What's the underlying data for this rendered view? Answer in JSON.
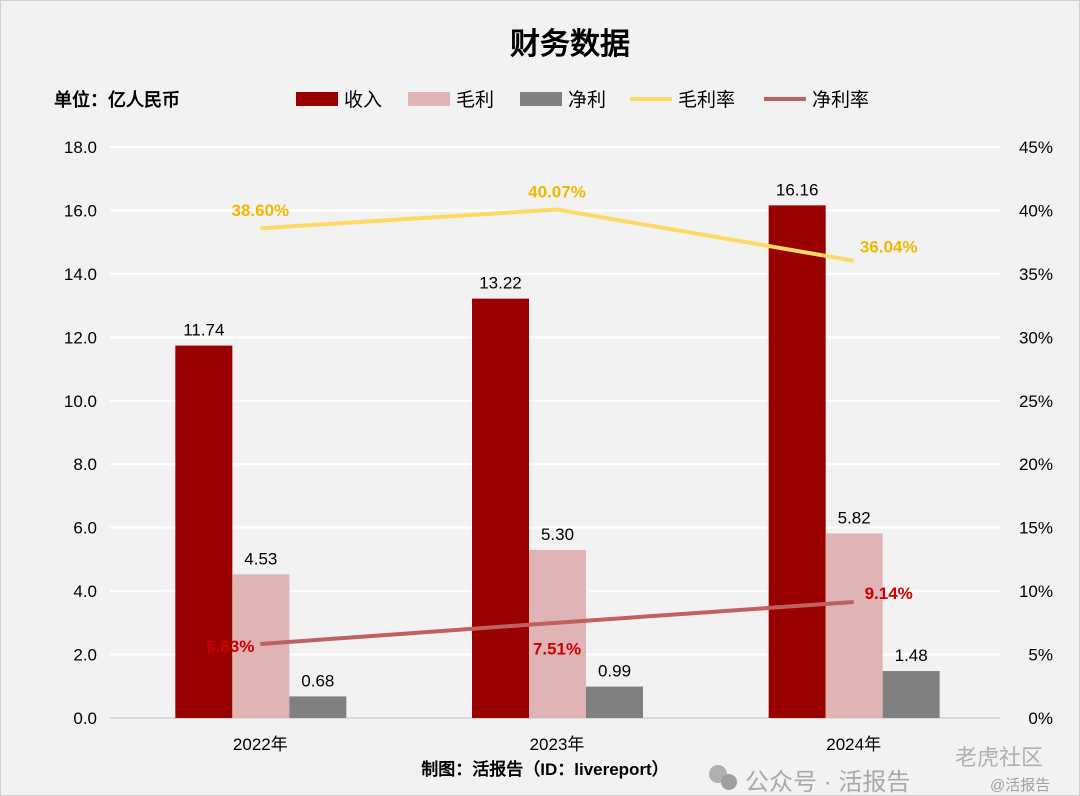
{
  "chart_data": {
    "type": "bar",
    "title": "财务数据",
    "unit_label": "单位：亿人民币",
    "source": "制图：活报告（ID：livereport）",
    "categories": [
      "2022年",
      "2023年",
      "2024年"
    ],
    "series": [
      {
        "name": "收入",
        "kind": "bar",
        "axis": "left",
        "color": "#990000",
        "values": [
          11.74,
          13.22,
          16.16
        ],
        "labels": [
          "11.74",
          "13.22",
          "16.16"
        ]
      },
      {
        "name": "毛利",
        "kind": "bar",
        "axis": "left",
        "color": "#e0b4b4",
        "values": [
          4.53,
          5.3,
          5.82
        ],
        "labels": [
          "4.53",
          "5.30",
          "5.82"
        ]
      },
      {
        "name": "净利",
        "kind": "bar",
        "axis": "left",
        "color": "#808080",
        "values": [
          0.68,
          0.99,
          1.48
        ],
        "labels": [
          "0.68",
          "0.99",
          "1.48"
        ]
      },
      {
        "name": "毛利率",
        "kind": "line",
        "axis": "right",
        "color": "#ffd966",
        "label_color": "#f2b800",
        "values": [
          38.6,
          40.07,
          36.04
        ],
        "labels": [
          "38.60%",
          "40.07%",
          "36.04%"
        ]
      },
      {
        "name": "净利率",
        "kind": "line",
        "axis": "right",
        "color": "#c0605f",
        "label_color": "#cc0000",
        "values": [
          5.83,
          7.51,
          9.14
        ],
        "labels": [
          "5.83%",
          "7.51%",
          "9.14%"
        ]
      }
    ],
    "left_axis": {
      "min": 0,
      "max": 18,
      "ticks": [
        "0.0",
        "2.0",
        "4.0",
        "6.0",
        "8.0",
        "10.0",
        "12.0",
        "14.0",
        "16.0",
        "18.0"
      ]
    },
    "right_axis": {
      "min": 0,
      "max": 45,
      "ticks": [
        "0%",
        "5%",
        "10%",
        "15%",
        "20%",
        "25%",
        "30%",
        "35%",
        "40%",
        "45%"
      ]
    },
    "grid": true,
    "legend_position": "top"
  },
  "watermark": {
    "wechat": "公众号 · 活报告",
    "site": "老虎社区",
    "handle": "@活报告"
  }
}
